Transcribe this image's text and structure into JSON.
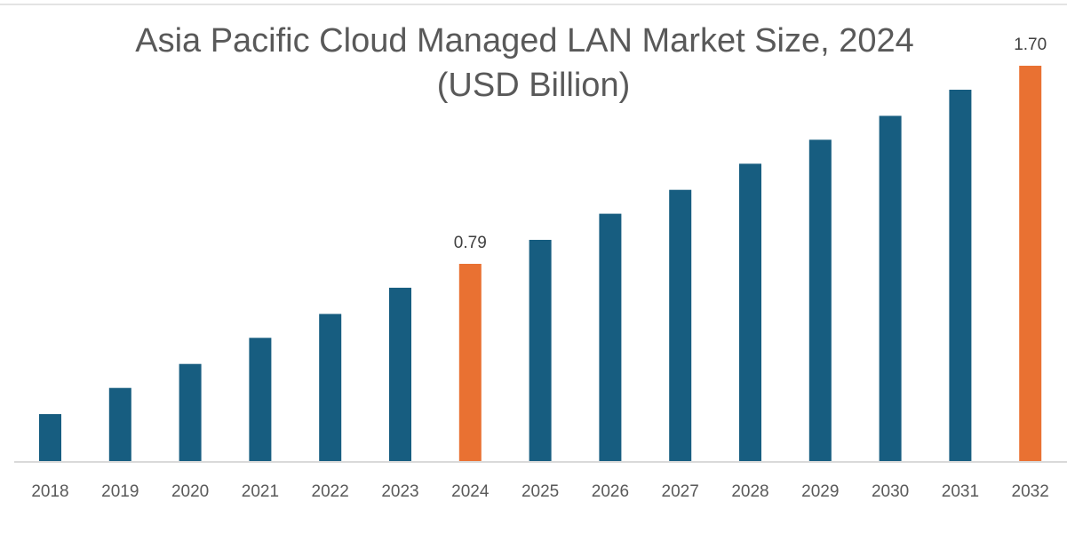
{
  "chart_data": {
    "type": "bar",
    "title": "Asia Pacific Cloud Managed LAN Market  Size, 2024",
    "subtitle": "(USD Billion)",
    "xlabel": "",
    "ylabel": "",
    "categories": [
      "2018",
      "2019",
      "2020",
      "2021",
      "2022",
      "2023",
      "2024",
      "2025",
      "2026",
      "2027",
      "2028",
      "2029",
      "2030",
      "2031",
      "2032"
    ],
    "values": [
      0.1,
      0.22,
      0.33,
      0.45,
      0.56,
      0.68,
      0.79,
      0.9,
      1.02,
      1.13,
      1.25,
      1.36,
      1.47,
      1.59,
      1.7
    ],
    "data_labels": [
      {
        "category": "2024",
        "text": "0.79"
      },
      {
        "category": "2032",
        "text": "1.70"
      }
    ],
    "highlight_categories": [
      "2024",
      "2032"
    ],
    "ylim": [
      -0.116,
      1.7
    ],
    "grid": false,
    "legend": "none",
    "colors": {
      "default_bar": "#175d80",
      "highlight_bar": "#e97132",
      "axis_line": "#d9d9d9",
      "tick_text": "#595959",
      "title_text": "#595959"
    }
  }
}
